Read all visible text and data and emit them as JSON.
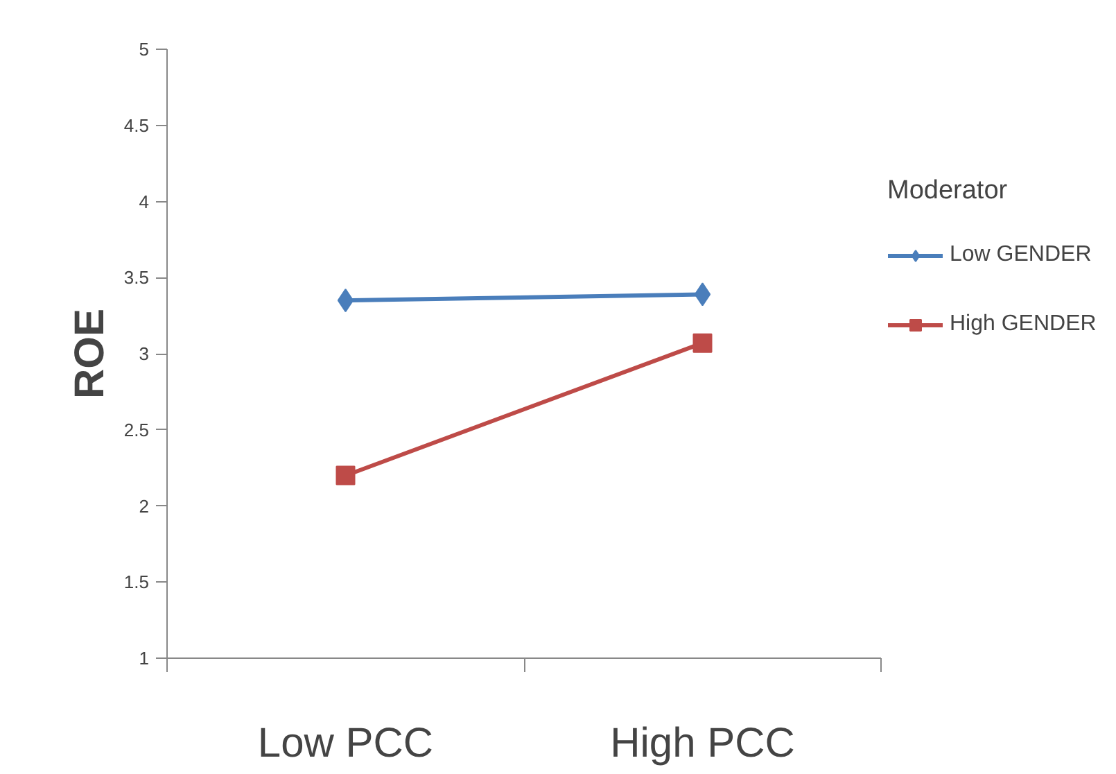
{
  "chart_data": {
    "type": "line",
    "ylabel": "ROE",
    "legend_title": "Moderator",
    "categories": [
      "Low PCC",
      "High PCC"
    ],
    "series": [
      {
        "name": "Low GENDER",
        "color": "#4a7ebb",
        "marker": "diamond",
        "values": [
          3.35,
          3.39
        ]
      },
      {
        "name": "High GENDER",
        "color": "#be4b48",
        "marker": "square",
        "values": [
          2.2,
          3.07
        ]
      }
    ],
    "ylim": [
      1,
      5
    ],
    "yticks": [
      1,
      1.5,
      2,
      2.5,
      3,
      3.5,
      4,
      4.5,
      5
    ],
    "grid": false,
    "legend": "right"
  }
}
